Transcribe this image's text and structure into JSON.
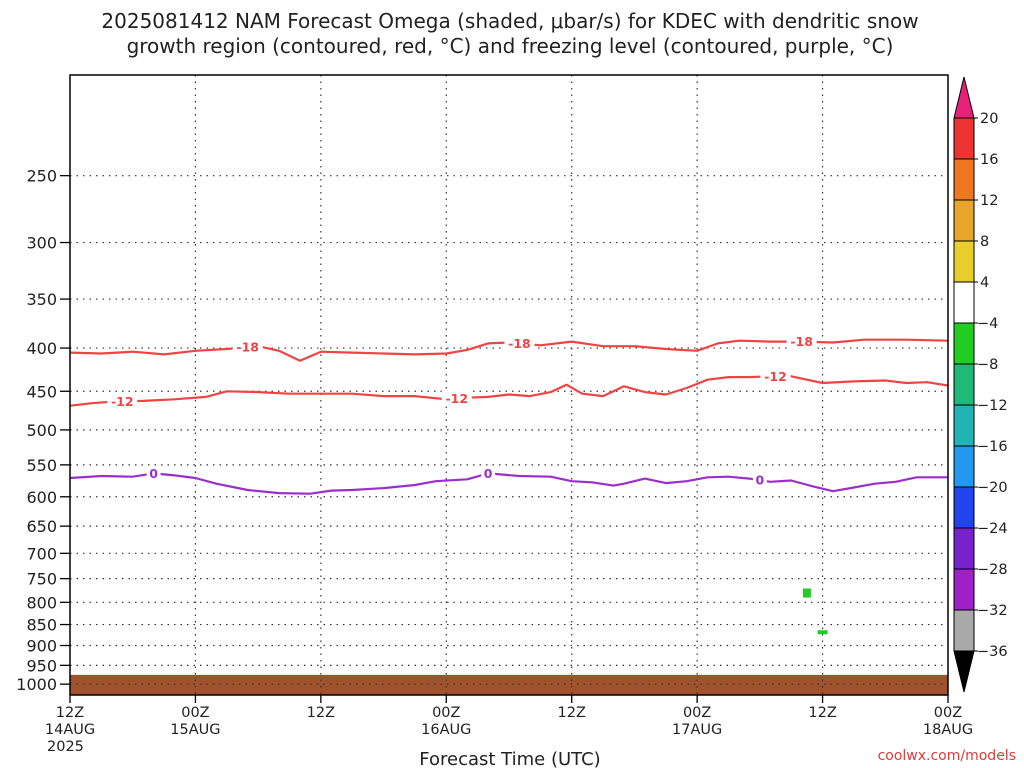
{
  "title": [
    "2025081412 NAM Forecast Omega (shaded, μbar/s) for KDEC with dendritic snow",
    "growth region (contoured, red, °C) and freezing level (contoured, purple, °C)"
  ],
  "credit": "coolwx.com/models",
  "chart_data": {
    "type": "contour",
    "title": "2025081412 NAM Forecast Omega (shaded, μbar/s) for KDEC with dendritic snow growth region (contoured, red, °C) and freezing level (contoured, purple, °C)",
    "xlabel": "Forecast Time (UTC)",
    "ylabel": "",
    "x_unit": "hours since 2025-08-14 12Z",
    "xlim": [
      0,
      84
    ],
    "ylim": [
      1030,
      190
    ],
    "y_scale": "log pressure (hPa)",
    "x_ticks": [
      {
        "hour": 0,
        "labels": [
          "12Z",
          "14AUG",
          "2025"
        ]
      },
      {
        "hour": 12,
        "labels": [
          "00Z",
          "15AUG"
        ]
      },
      {
        "hour": 24,
        "labels": [
          "12Z"
        ]
      },
      {
        "hour": 36,
        "labels": [
          "00Z",
          "16AUG"
        ]
      },
      {
        "hour": 48,
        "labels": [
          "12Z"
        ]
      },
      {
        "hour": 60,
        "labels": [
          "00Z",
          "17AUG"
        ]
      },
      {
        "hour": 72,
        "labels": [
          "12Z"
        ]
      },
      {
        "hour": 84,
        "labels": [
          "00Z",
          "18AUG"
        ]
      }
    ],
    "y_ticks": [
      250,
      300,
      350,
      400,
      450,
      500,
      550,
      600,
      650,
      700,
      750,
      800,
      850,
      900,
      950,
      1000
    ],
    "grid": true,
    "contours": [
      {
        "level": "-18",
        "color": "#ee4444",
        "label_hours": [
          17,
          43,
          70
        ],
        "x": [
          0,
          3,
          6,
          9,
          12,
          15,
          18,
          20,
          22,
          24,
          27,
          30,
          33,
          36,
          38,
          40,
          42,
          45,
          48,
          51,
          54,
          57,
          60,
          62,
          64,
          67,
          70,
          73,
          76,
          80,
          84
        ],
        "y": [
          405,
          406,
          404,
          407,
          403,
          401,
          398,
          403,
          414,
          404,
          405,
          406,
          407,
          406,
          402,
          395,
          394,
          397,
          393,
          398,
          398,
          401,
          403,
          395,
          392,
          393,
          393,
          394,
          391,
          391,
          392
        ]
      },
      {
        "level": "-12",
        "color": "#ee4444",
        "label_hours": [
          5,
          37,
          67.5
        ],
        "x": [
          0,
          2,
          4,
          7,
          10,
          13,
          15,
          18,
          21,
          24,
          27,
          30,
          33,
          36,
          38,
          40,
          42,
          44,
          46,
          47.5,
          49,
          51,
          53,
          55,
          57,
          59,
          61,
          63,
          65,
          67,
          69,
          72,
          75,
          78,
          80,
          82,
          84
        ],
        "y": [
          468,
          465,
          463,
          462,
          460,
          457,
          450,
          451,
          453,
          453,
          453,
          456,
          456,
          460,
          458,
          457,
          454,
          456,
          451,
          442,
          453,
          456,
          444,
          451,
          454,
          446,
          436,
          433,
          433,
          432,
          432,
          440,
          438,
          437,
          440,
          439,
          443
        ]
      },
      {
        "level": "0",
        "color": "#9b2fcb",
        "label_hours": [
          8,
          40,
          66
        ],
        "x": [
          0,
          3,
          6,
          8,
          10,
          12,
          14,
          17,
          20,
          23,
          25,
          27,
          30,
          33,
          35,
          38,
          40,
          43,
          46,
          48,
          50,
          52,
          53,
          55,
          57,
          59,
          61,
          63,
          65,
          67,
          69,
          71,
          73,
          75,
          77,
          79,
          81,
          84
        ],
        "y": [
          570,
          567,
          568,
          563,
          566,
          570,
          579,
          589,
          594,
          595,
          590,
          589,
          586,
          581,
          575,
          572,
          563,
          567,
          568,
          575,
          577,
          582,
          579,
          571,
          578,
          575,
          569,
          568,
          571,
          576,
          574,
          583,
          591,
          585,
          579,
          576,
          569,
          569
        ]
      }
    ],
    "shaded_regions": [
      {
        "value_range": [
          -8,
          -4
        ],
        "color": "#22cc22",
        "hour": 70.5,
        "pressure": 780
      },
      {
        "value_range": [
          -8,
          -4
        ],
        "color": "#22cc22",
        "hour": 72,
        "pressure": 868
      }
    ],
    "ground": {
      "color": "#a0522d",
      "above_pressure": 975
    },
    "colorbar": {
      "boundaries": [
        -36,
        -32,
        -28,
        -24,
        -20,
        -16,
        -12,
        -8,
        -4,
        4,
        8,
        12,
        16,
        20
      ],
      "labels": [
        "20",
        "16",
        "12",
        "8",
        "4",
        "−4",
        "−8",
        "−12",
        "−16",
        "−20",
        "−24",
        "−28",
        "−32",
        "−36"
      ],
      "segments_top_to_bottom": [
        "#ee3333",
        "#ee7722",
        "#e8a527",
        "#e8ce2a",
        "#ffffff",
        "#22cc22",
        "#22b878",
        "#22b4b4",
        "#2299ee",
        "#2244ee",
        "#7722cc",
        "#a020c8",
        "#a9a9a9"
      ],
      "top_arrow_color": "#e8207a",
      "bottom_arrow_color": "#000000"
    }
  }
}
